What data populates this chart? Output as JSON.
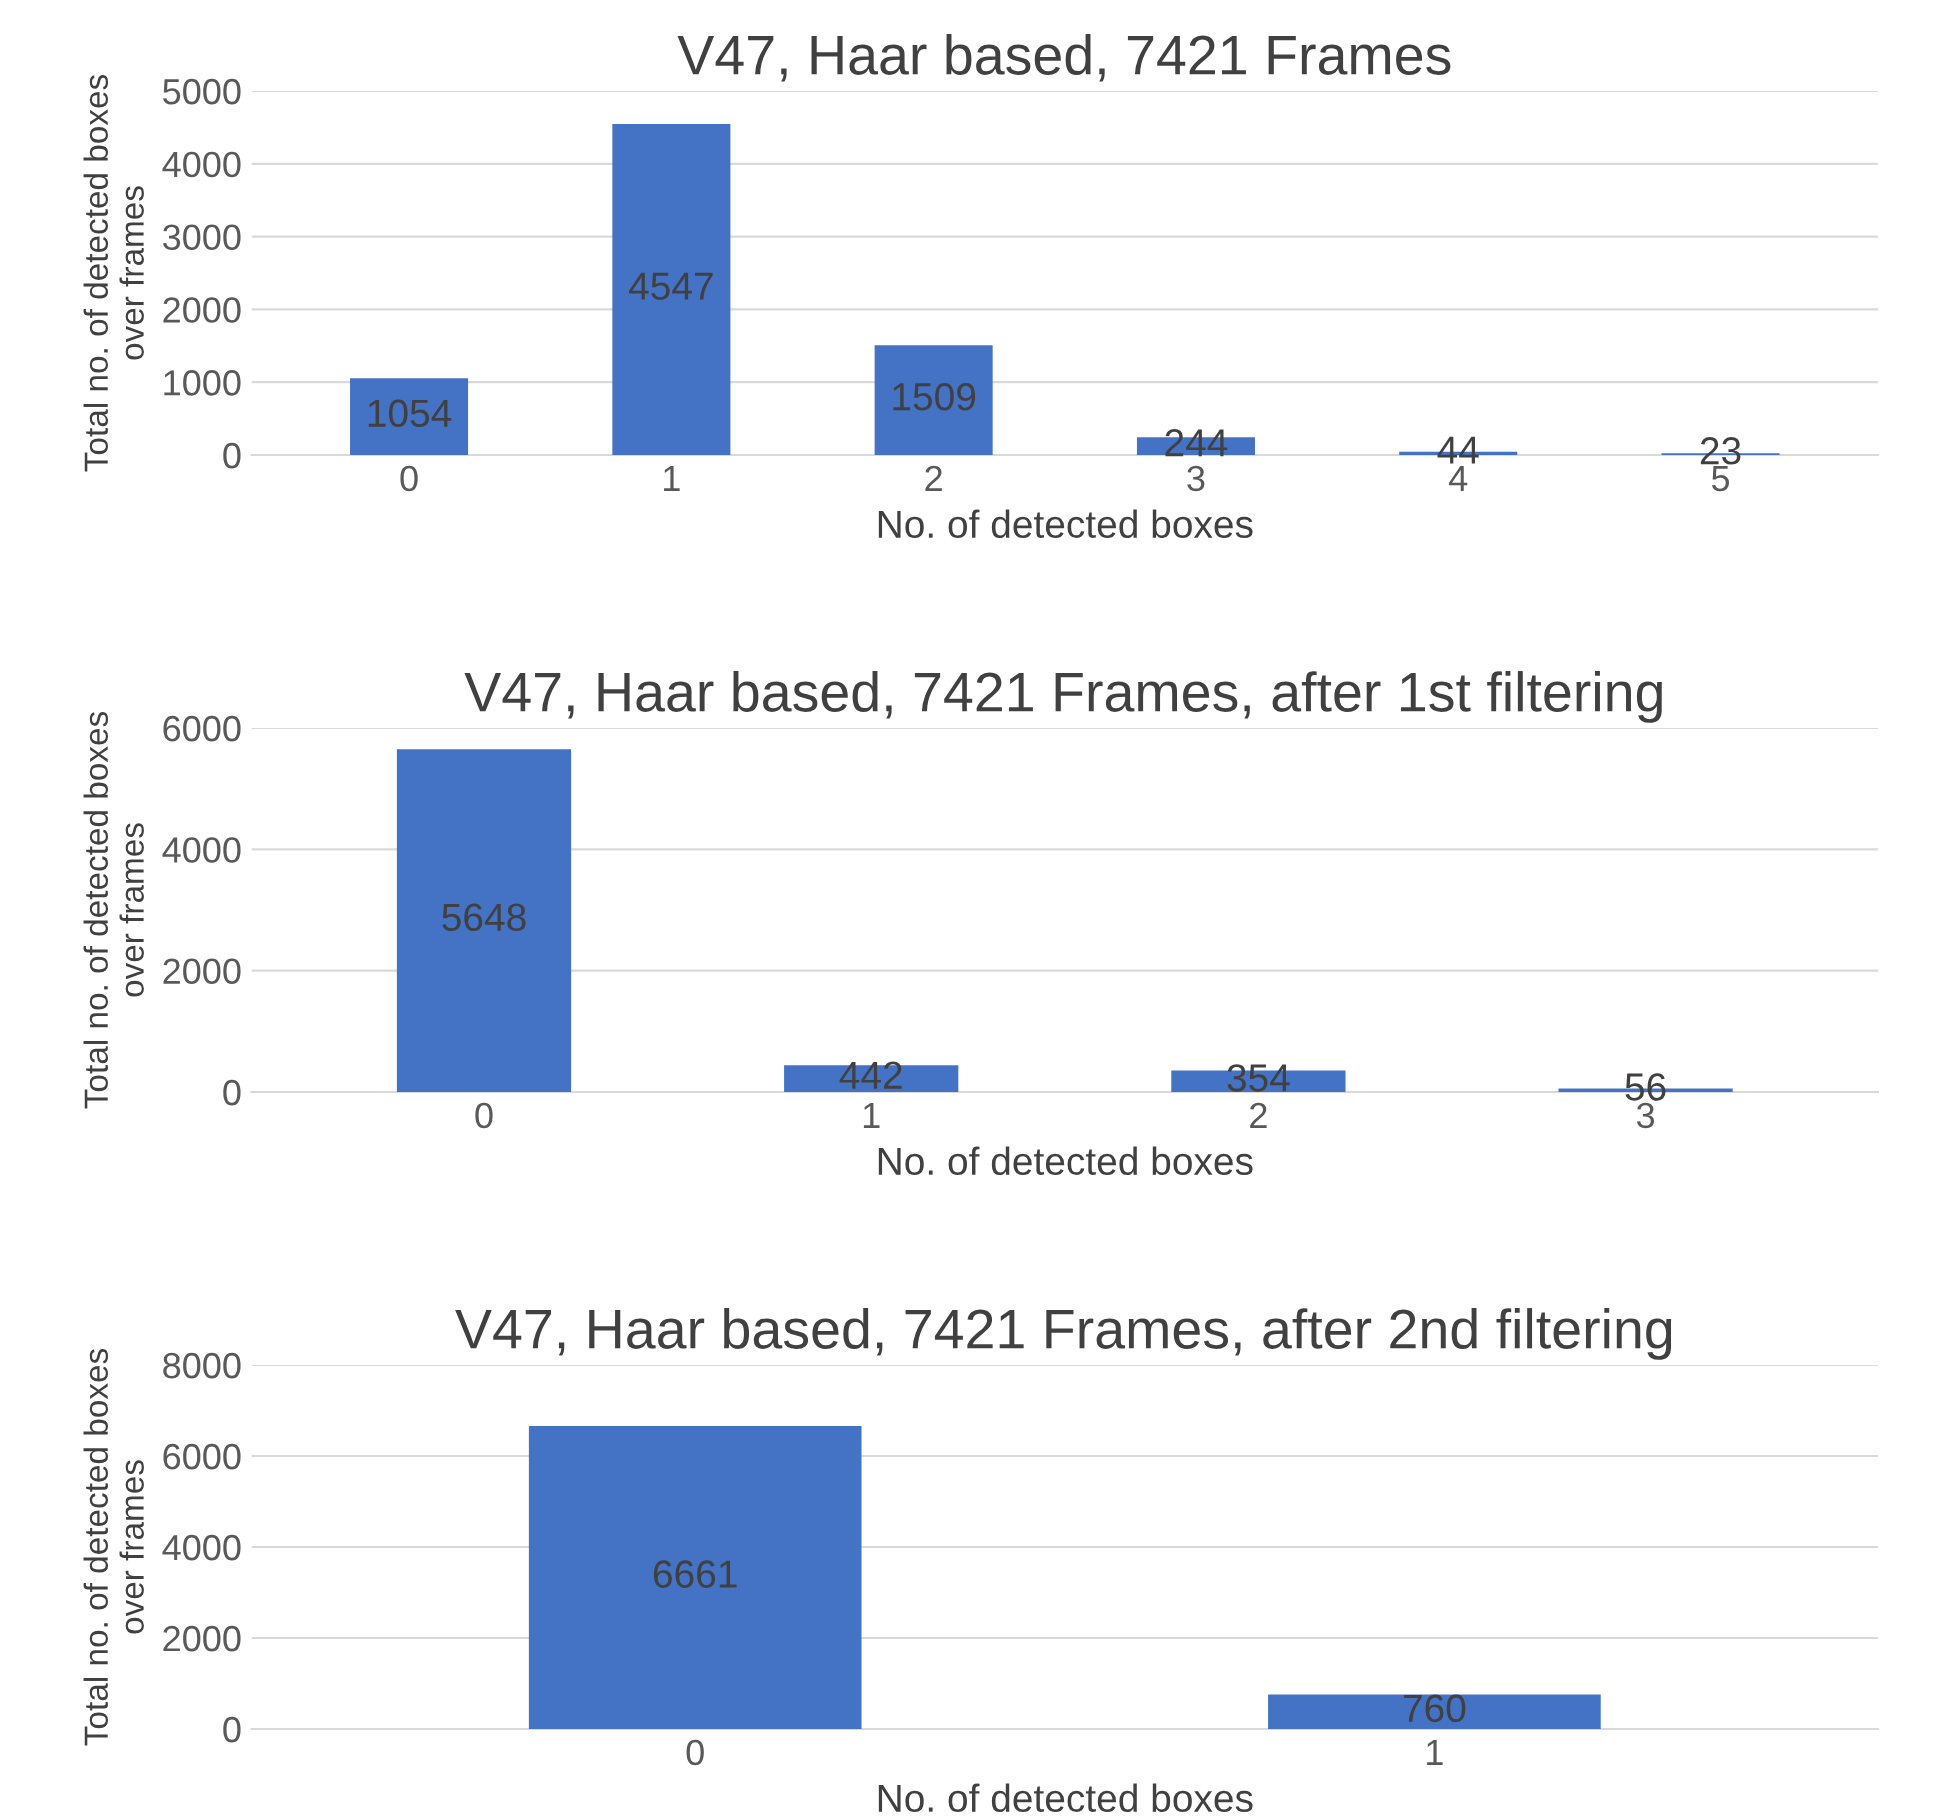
{
  "chart_data": [
    {
      "type": "bar",
      "title": "V47, Haar based, 7421 Frames",
      "xlabel": "No. of detected boxes",
      "ylabel": "Total no. of detected boxes\nover frames",
      "categories": [
        "0",
        "1",
        "2",
        "3",
        "4",
        "5"
      ],
      "values": [
        1054,
        4547,
        1509,
        244,
        44,
        23
      ],
      "color": "#4472c4",
      "ylim": [
        0,
        5000
      ],
      "yticks": [
        0,
        1000,
        2000,
        3000,
        4000,
        5000
      ],
      "grid": "y",
      "data_labels": true
    },
    {
      "type": "bar",
      "title": "V47, Haar based, 7421 Frames, after 1st filtering",
      "xlabel": "No. of detected boxes",
      "ylabel": "Total no. of detected boxes\nover frames",
      "categories": [
        "0",
        "1",
        "2",
        "3"
      ],
      "values": [
        5648,
        442,
        354,
        56
      ],
      "color": "#4472c4",
      "ylim": [
        0,
        6000
      ],
      "yticks": [
        0,
        2000,
        4000,
        6000
      ],
      "grid": "y",
      "data_labels": true
    },
    {
      "type": "bar",
      "title": "V47, Haar based, 7421 Frames, after 2nd filtering",
      "xlabel": "No. of detected boxes",
      "ylabel": "Total no. of detected boxes\nover frames",
      "categories": [
        "0",
        "1"
      ],
      "values": [
        6661,
        760
      ],
      "color": "#4472c4",
      "ylim": [
        0,
        8000
      ],
      "yticks": [
        0,
        2000,
        4000,
        6000,
        8000
      ],
      "grid": "y",
      "data_labels": true
    }
  ]
}
